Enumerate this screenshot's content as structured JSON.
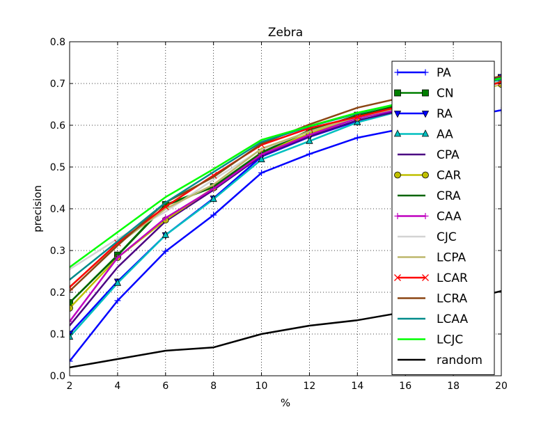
{
  "chart_data": {
    "type": "line",
    "title": "Zebra",
    "xlabel": "%",
    "ylabel": "precision",
    "xlim": [
      2,
      20
    ],
    "ylim": [
      0.0,
      0.8
    ],
    "xticks": [
      "2",
      "4",
      "6",
      "8",
      "10",
      "12",
      "14",
      "16",
      "18",
      "20"
    ],
    "yticks": [
      "0.0",
      "0.1",
      "0.2",
      "0.3",
      "0.4",
      "0.5",
      "0.6",
      "0.7",
      "0.8"
    ],
    "grid": true,
    "legend_position": "right",
    "x": [
      2,
      4,
      6,
      8,
      10,
      12,
      14,
      16,
      18,
      20
    ],
    "series": [
      {
        "name": "PA",
        "color": "#0000ff",
        "marker": "plus",
        "values": [
          0.035,
          0.18,
          0.298,
          0.385,
          0.486,
          0.531,
          0.57,
          0.593,
          0.615,
          0.636
        ]
      },
      {
        "name": "CN",
        "color": "#007f00",
        "marker": "square",
        "values": [
          0.175,
          0.289,
          0.41,
          0.453,
          0.535,
          0.587,
          0.624,
          0.65,
          0.682,
          0.714
        ]
      },
      {
        "name": "RA",
        "color": "#0000ff",
        "marker": "triangle-down",
        "values": [
          0.101,
          0.226,
          0.337,
          0.425,
          0.525,
          0.572,
          0.61,
          0.64,
          0.672,
          0.716
        ]
      },
      {
        "name": "AA",
        "color": "#00bfbf",
        "marker": "triangle-up",
        "values": [
          0.093,
          0.222,
          0.337,
          0.423,
          0.518,
          0.562,
          0.607,
          0.637,
          0.664,
          0.706
        ]
      },
      {
        "name": "CPA",
        "color": "#4b0082",
        "marker": "none",
        "values": [
          0.12,
          0.26,
          0.37,
          0.445,
          0.527,
          0.573,
          0.612,
          0.637,
          0.664,
          0.7
        ]
      },
      {
        "name": "CAR",
        "color": "#bfbf00",
        "marker": "circle",
        "values": [
          0.162,
          0.283,
          0.373,
          0.45,
          0.535,
          0.58,
          0.617,
          0.642,
          0.67,
          0.698
        ]
      },
      {
        "name": "CRA",
        "color": "#006400",
        "marker": "none",
        "values": [
          0.175,
          0.288,
          0.408,
          0.452,
          0.534,
          0.588,
          0.623,
          0.652,
          0.683,
          0.713
        ]
      },
      {
        "name": "CAA",
        "color": "#bf00bf",
        "marker": "plus",
        "values": [
          0.13,
          0.283,
          0.378,
          0.448,
          0.53,
          0.577,
          0.617,
          0.641,
          0.668,
          0.702
        ]
      },
      {
        "name": "CJC",
        "color": "#d3d3d3",
        "marker": "none",
        "values": [
          0.255,
          0.328,
          0.393,
          0.47,
          0.542,
          0.585,
          0.62,
          0.645,
          0.672,
          0.7
        ]
      },
      {
        "name": "LCPA",
        "color": "#bdb76b",
        "marker": "none",
        "values": [
          0.213,
          0.315,
          0.4,
          0.458,
          0.544,
          0.585,
          0.62,
          0.645,
          0.675,
          0.704
        ]
      },
      {
        "name": "LCAR",
        "color": "#ff0000",
        "marker": "x",
        "values": [
          0.212,
          0.318,
          0.405,
          0.48,
          0.553,
          0.593,
          0.62,
          0.648,
          0.676,
          0.703
        ]
      },
      {
        "name": "LCRA",
        "color": "#8b4513",
        "marker": "none",
        "values": [
          0.203,
          0.312,
          0.415,
          0.476,
          0.556,
          0.602,
          0.642,
          0.668,
          0.69,
          0.718
        ]
      },
      {
        "name": "LCAA",
        "color": "#008b8b",
        "marker": "none",
        "values": [
          0.23,
          0.322,
          0.415,
          0.488,
          0.56,
          0.597,
          0.628,
          0.656,
          0.684,
          0.71
        ]
      },
      {
        "name": "LCJC",
        "color": "#00ff00",
        "marker": "none",
        "values": [
          0.26,
          0.344,
          0.428,
          0.495,
          0.565,
          0.598,
          0.63,
          0.655,
          0.685,
          0.713
        ]
      },
      {
        "name": "random",
        "color": "#000000",
        "marker": "none",
        "values": [
          0.02,
          0.04,
          0.06,
          0.068,
          0.1,
          0.12,
          0.133,
          0.153,
          0.175,
          0.203
        ]
      }
    ]
  }
}
